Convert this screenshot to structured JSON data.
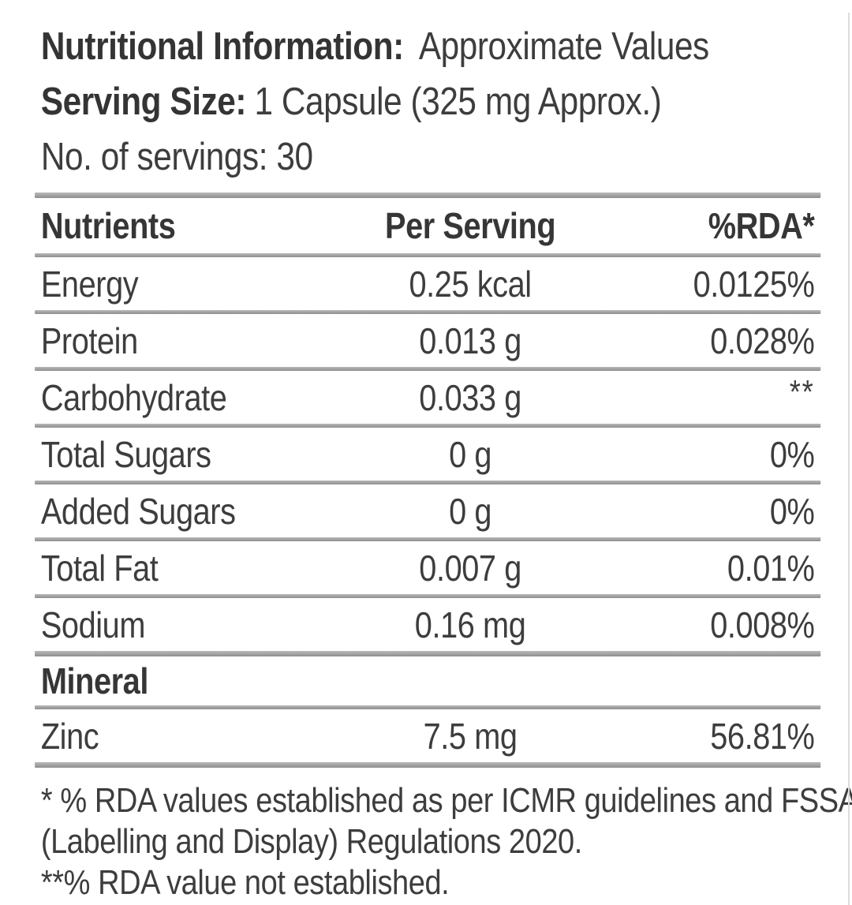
{
  "header": {
    "title_label": "Nutritional Information:",
    "title_value": "Approximate Values",
    "serving_label": "Serving Size:",
    "serving_value": "1 Capsule (325 mg Approx.)",
    "servings_line": "No. of servings: 30"
  },
  "table": {
    "columns": [
      "Nutrients",
      "Per Serving",
      "%RDA*"
    ],
    "rows": [
      {
        "nutrient": "Energy",
        "per_serving": "0.25 kcal",
        "rda": "0.0125%"
      },
      {
        "nutrient": "Protein",
        "per_serving": "0.013 g",
        "rda": "0.028%"
      },
      {
        "nutrient": "Carbohydrate",
        "per_serving": "0.033 g",
        "rda": "**"
      },
      {
        "nutrient": "Total Sugars",
        "per_serving": "0 g",
        "rda": "0%"
      },
      {
        "nutrient": "Added Sugars",
        "per_serving": "0 g",
        "rda": "0%"
      },
      {
        "nutrient": "Total Fat",
        "per_serving": "0.007 g",
        "rda": "0.01%"
      },
      {
        "nutrient": "Sodium",
        "per_serving": "0.16 mg",
        "rda": "0.008%"
      },
      {
        "section": "Mineral"
      },
      {
        "nutrient": "Zinc",
        "per_serving": "7.5 mg",
        "rda": "56.81%"
      }
    ]
  },
  "footnotes": {
    "note1_line1": "* % RDA values established as per ICMR guidelines and FSSAI",
    "note1_line2": "(Labelling and Display) Regulations 2020.",
    "note2": "**% RDA value not established."
  },
  "colors": {
    "text": "#3d3d3d",
    "separator": "#9a9a9a",
    "edge_line": "#dcdcdc",
    "background": "#ffffff"
  }
}
